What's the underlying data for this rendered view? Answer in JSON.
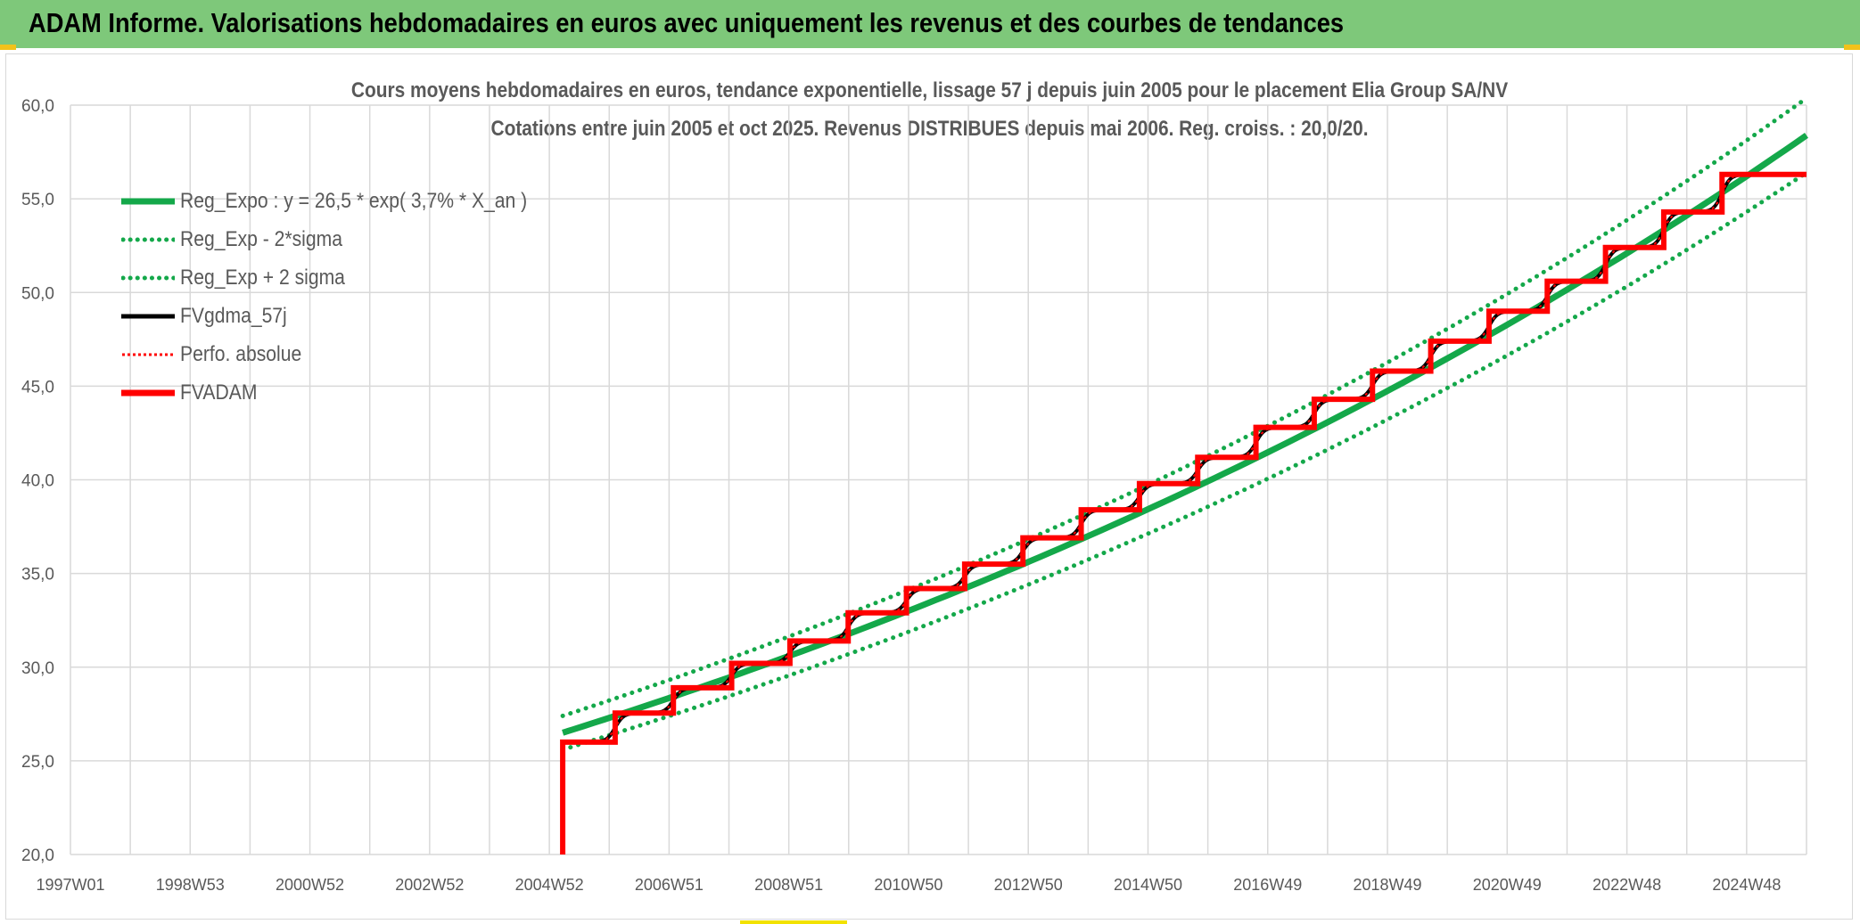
{
  "header": {
    "title": "ADAM Informe. Valorisations hebdomadaires en euros avec uniquement les revenus et des courbes de tendances"
  },
  "colors": {
    "header_bg": "#7ec87a",
    "green": "#14a84a",
    "black": "#000000",
    "red": "#ff0000",
    "grid": "#d9d9d9",
    "text": "#595959"
  },
  "chart_data": {
    "type": "line",
    "title_line1": "Cours moyens hebdomadaires en euros, tendance exponentielle, lissage 57 j depuis juin 2005 pour le placement Elia Group SA/NV",
    "title_line2": "Cotations entre juin 2005 et oct 2025. Revenus DISTRIBUES depuis mai 2006. Reg. croiss. : 20,0/20.",
    "x_tick_labels": [
      "1997W01",
      "1998W53",
      "2000W52",
      "2002W52",
      "2004W52",
      "2006W51",
      "2008W51",
      "2010W50",
      "2012W50",
      "2014W50",
      "2016W49",
      "2018W49",
      "2020W49",
      "2022W48",
      "2024W48"
    ],
    "x_range_years": [
      1997.0,
      2026.8
    ],
    "y_tick_labels": [
      "20,0",
      "25,0",
      "30,0",
      "35,0",
      "40,0",
      "45,0",
      "50,0",
      "55,0",
      "60,0"
    ],
    "ylim": [
      20,
      60
    ],
    "grid": true,
    "legend_position": "top-left",
    "series": [
      {
        "name": "Reg_Expo : y = 26,5 * exp( 3,7% *  X_an )",
        "style": "solid-green",
        "function": {
          "a": 26.5,
          "r": 0.037,
          "start_year": 2005.45,
          "end_year": 2026.8
        }
      },
      {
        "name": "Reg_Exp - 2*sigma",
        "style": "dotted-green",
        "function": {
          "a": 25.6,
          "r": 0.037,
          "start_year": 2005.45,
          "end_year": 2026.8
        }
      },
      {
        "name": "Reg_Exp + 2 sigma",
        "style": "dotted-green",
        "function": {
          "a": 27.4,
          "r": 0.037,
          "start_year": 2005.45,
          "end_year": 2026.8
        }
      },
      {
        "name": "FVgdma_57j",
        "style": "solid-black"
      },
      {
        "name": "Perfo. absolue",
        "style": "dotted-red"
      },
      {
        "name": "FVADAM",
        "style": "solid-red"
      }
    ],
    "fvadam_steps": [
      {
        "x": 2005.45,
        "y": 26.0
      },
      {
        "x": 2006.35,
        "y": 27.55
      },
      {
        "x": 2007.35,
        "y": 28.9
      },
      {
        "x": 2008.35,
        "y": 30.2
      },
      {
        "x": 2009.35,
        "y": 31.4
      },
      {
        "x": 2010.35,
        "y": 32.9
      },
      {
        "x": 2011.35,
        "y": 34.2
      },
      {
        "x": 2012.35,
        "y": 35.5
      },
      {
        "x": 2013.35,
        "y": 36.9
      },
      {
        "x": 2014.35,
        "y": 38.4
      },
      {
        "x": 2015.35,
        "y": 39.8
      },
      {
        "x": 2016.35,
        "y": 41.2
      },
      {
        "x": 2017.35,
        "y": 42.8
      },
      {
        "x": 2018.35,
        "y": 44.3
      },
      {
        "x": 2019.35,
        "y": 45.8
      },
      {
        "x": 2020.35,
        "y": 47.4
      },
      {
        "x": 2021.35,
        "y": 49.0
      },
      {
        "x": 2022.35,
        "y": 50.6
      },
      {
        "x": 2023.35,
        "y": 52.4
      },
      {
        "x": 2024.35,
        "y": 54.3
      },
      {
        "x": 2025.35,
        "y": 56.3
      }
    ],
    "fvadam_end_year": 2026.8
  }
}
